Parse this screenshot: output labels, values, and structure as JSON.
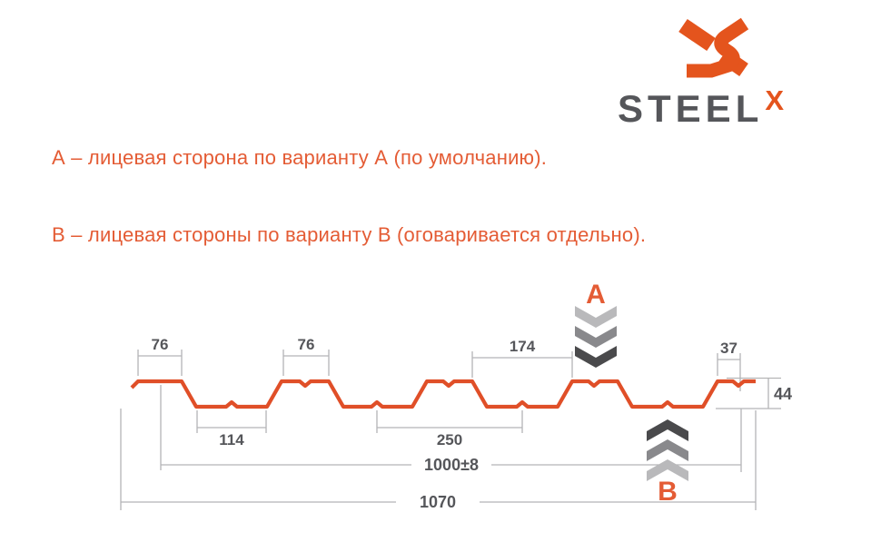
{
  "logo": {
    "brand": "STEEL",
    "sup": "X"
  },
  "notes": {
    "line_a": "А – лицевая сторона по варианту А (по умолчанию).",
    "line_b": "В – лицевая стороны по варианту В (оговаривается отдельно)."
  },
  "diagram": {
    "marker_a": "А",
    "marker_b": "В",
    "dims": {
      "crest1_width": "76",
      "crest2_width": "76",
      "crest_gap": "174",
      "edge_crest": "37",
      "height": "44",
      "valley1_width": "114",
      "rib_pitch": "250",
      "cover_width": "1000±8",
      "total_width": "1070"
    }
  },
  "colors": {
    "profile_orange": "#e04f28",
    "text_orange": "#e45c35",
    "logo_orange": "#e4541d",
    "brand_gray": "#55565a",
    "dim_line": "#b4b4b6",
    "dim_text": "#55565a",
    "chevron_light": "#b9b9bb",
    "chevron_mid": "#89898c",
    "chevron_dark": "#4a4a4c"
  }
}
